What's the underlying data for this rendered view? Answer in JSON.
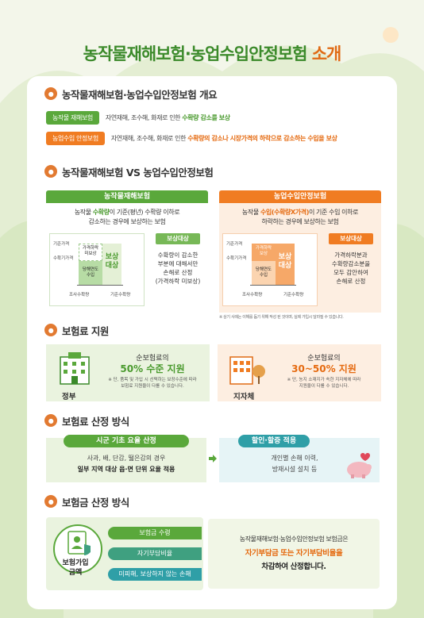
{
  "title": {
    "main": "농작물재해보험·농업수입안정보험",
    "suffix": "소개"
  },
  "sections": {
    "overview": "농작물재해보험·농업수입안정보험 개요",
    "vs": "농작물재해보험 VS 농업수입안정보험",
    "premium": "보험료 지원",
    "calc": "보험료 산정 방식",
    "payout": "보험금 산정 방식"
  },
  "overview": {
    "crop": {
      "tag": "농작물 재해보험",
      "text": "자연재해, 조수해, 화재로 인한 ",
      "highlight": "수확량 감소를 보상"
    },
    "income": {
      "tag": "농업수입 안정보험",
      "text": "자연재해, 조수해, 화재로 인한 ",
      "highlight": "수확량의 감소나 시장가격의 하락으로 감소하는 수입을 보상"
    }
  },
  "compare": {
    "crop": {
      "header": "농작물재해보험",
      "desc1_a": "농작물 ",
      "desc1_hl": "수확량",
      "desc1_b": "이 기준(평년) 수확량 이하로",
      "desc2": "감소하는 경우에 보상하는 보험",
      "y_label": "기준가격",
      "y_label2": "수확기가격",
      "bar_top": "가격하락\n미보상",
      "bar_mid": "당해연도\n수입",
      "bar_big": "보상\n대상",
      "x_left": "조사수확량",
      "x_right": "기준수확량",
      "pill": "보상대상",
      "side": "수확량이 감소한\n부분에 대해서만\n손해로 산정\n(가격하락 미보상)"
    },
    "income": {
      "header": "농업수입안정보험",
      "desc1_a": "농작물 ",
      "desc1_hl": "수입(수확량X가격)",
      "desc1_b": "이 기준 수입 이하로",
      "desc2": "하락하는 경우에 보상하는 보험",
      "y_label": "기준가격",
      "y_label2": "수확기가격",
      "bar_top": "가격하락\n보상",
      "bar_mid": "당해연도\n수입",
      "bar_big": "보상\n대상",
      "x_left": "조사수확량",
      "x_right": "기준수확량",
      "pill": "보상대상",
      "side": "가격하락분과\n수확량감소분을\n모두 감안하여\n손해로 산정"
    },
    "footnote": "※ 상기 사례는 이해를 돕기 위해 작성 된 것이며, 실제 가입시 달라질 수 있습니다."
  },
  "premium": {
    "gov": {
      "label": "순보험료의",
      "amount": "50% 수준 지원",
      "note": "※ 단, 품목 및 가입 시 선택하는 보장수준에 따라\n보험료 지원율이 다를 수 있습니다.",
      "who": "정부"
    },
    "local": {
      "label": "순보험료의",
      "amount": "30~50% 지원",
      "note": "※ 단, 농지 소재지가 속한 지자체에 따라\n지원율이 다를 수 있습니다.",
      "who": "지자체"
    }
  },
  "calc": {
    "left": {
      "pill": "시군 기초 요율 산정",
      "l1": "사과, 배, 단감, 떫은감의 경우",
      "l2": "일부 지역 대상 읍·면 단위 요율 적용"
    },
    "right": {
      "pill": "할인·할증 적용",
      "l1": "개인별 손해 이력,",
      "l2": "방재시설 설치 등"
    }
  },
  "payout": {
    "title": "보험가입\n금액",
    "items": [
      "보험금 수령",
      "자기부담비율",
      "미피해, 보상하지 않는 손해"
    ],
    "d1": "농작물재해보험·농업수입안정보험 보험금은",
    "d2": "자기부담금 또는 자기부담비율을",
    "d3": "차감하여 산정합니다."
  },
  "colors": {
    "green": "#5aa83b",
    "orange": "#f07c22",
    "teal": "#2f9fa7"
  }
}
